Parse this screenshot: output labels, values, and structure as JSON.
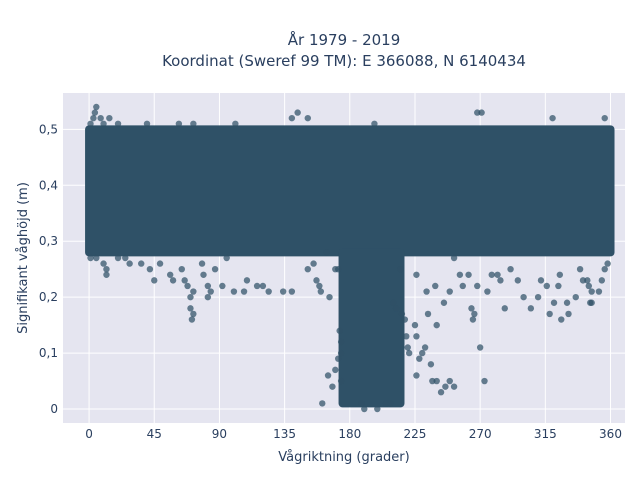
{
  "chart_data": {
    "type": "scatter",
    "title_line1": "År 1979 - 2019",
    "title_line2": "Koordinat (Sweref 99 TM): E 366088, N 6140434",
    "xlabel": "Vågriktning (grader)",
    "ylabel": "Signifikant våghöjd (m)",
    "xlim": [
      -18,
      370
    ],
    "ylim": [
      -0.025,
      0.565
    ],
    "xticks": [
      0,
      45,
      90,
      135,
      180,
      225,
      270,
      315,
      360
    ],
    "xtick_labels": [
      "0",
      "45",
      "90",
      "135",
      "180",
      "225",
      "270",
      "315",
      "360"
    ],
    "yticks": [
      0,
      0.1,
      0.2,
      0.3,
      0.4,
      0.5
    ],
    "ytick_labels": [
      "0",
      "0,1",
      "0,2",
      "0,3",
      "0,4",
      "0,5"
    ],
    "grid": true,
    "legend": "none",
    "colors": {
      "marker": "#2f5167",
      "plot_bg": "#e5e5f0",
      "grid": "#ffffff"
    },
    "dense_regions": [
      {
        "x": [
          0,
          360
        ],
        "y": [
          0.28,
          0.5
        ]
      },
      {
        "x": [
          175,
          215
        ],
        "y": [
          0.01,
          0.28
        ]
      }
    ],
    "points": [
      [
        1,
        0.51
      ],
      [
        3,
        0.52
      ],
      [
        4,
        0.53
      ],
      [
        5,
        0.54
      ],
      [
        8,
        0.52
      ],
      [
        10,
        0.51
      ],
      [
        14,
        0.52
      ],
      [
        20,
        0.51
      ],
      [
        40,
        0.51
      ],
      [
        62,
        0.51
      ],
      [
        72,
        0.51
      ],
      [
        101,
        0.51
      ],
      [
        140,
        0.52
      ],
      [
        144,
        0.53
      ],
      [
        151,
        0.52
      ],
      [
        197,
        0.51
      ],
      [
        268,
        0.53
      ],
      [
        271,
        0.53
      ],
      [
        320,
        0.52
      ],
      [
        356,
        0.52
      ],
      [
        1,
        0.27
      ],
      [
        5,
        0.27
      ],
      [
        10,
        0.26
      ],
      [
        12,
        0.25
      ],
      [
        12,
        0.24
      ],
      [
        20,
        0.27
      ],
      [
        25,
        0.27
      ],
      [
        28,
        0.26
      ],
      [
        36,
        0.26
      ],
      [
        42,
        0.25
      ],
      [
        45,
        0.23
      ],
      [
        49,
        0.26
      ],
      [
        56,
        0.24
      ],
      [
        58,
        0.23
      ],
      [
        64,
        0.25
      ],
      [
        66,
        0.23
      ],
      [
        68,
        0.22
      ],
      [
        70,
        0.2
      ],
      [
        72,
        0.21
      ],
      [
        70,
        0.18
      ],
      [
        71,
        0.16
      ],
      [
        72,
        0.17
      ],
      [
        78,
        0.26
      ],
      [
        79,
        0.24
      ],
      [
        82,
        0.22
      ],
      [
        82,
        0.2
      ],
      [
        84,
        0.21
      ],
      [
        87,
        0.25
      ],
      [
        92,
        0.22
      ],
      [
        95,
        0.27
      ],
      [
        100,
        0.21
      ],
      [
        107,
        0.21
      ],
      [
        109,
        0.23
      ],
      [
        116,
        0.22
      ],
      [
        120,
        0.22
      ],
      [
        124,
        0.21
      ],
      [
        134,
        0.21
      ],
      [
        140,
        0.21
      ],
      [
        151,
        0.25
      ],
      [
        155,
        0.26
      ],
      [
        157,
        0.23
      ],
      [
        159,
        0.22
      ],
      [
        160,
        0.21
      ],
      [
        164,
        0.28
      ],
      [
        166,
        0.2
      ],
      [
        170,
        0.25
      ],
      [
        172,
        0.25
      ],
      [
        161,
        0.01
      ],
      [
        165,
        0.06
      ],
      [
        168,
        0.04
      ],
      [
        170,
        0.07
      ],
      [
        172,
        0.09
      ],
      [
        173,
        0.14
      ],
      [
        174,
        0.1
      ],
      [
        174,
        0.12
      ],
      [
        174,
        0.05
      ],
      [
        210,
        0.19
      ],
      [
        212,
        0.18
      ],
      [
        216,
        0.17
      ],
      [
        218,
        0.16
      ],
      [
        219,
        0.13
      ],
      [
        220,
        0.11
      ],
      [
        221,
        0.1
      ],
      [
        225,
        0.15
      ],
      [
        226,
        0.13
      ],
      [
        226,
        0.06
      ],
      [
        228,
        0.09
      ],
      [
        230,
        0.1
      ],
      [
        232,
        0.11
      ],
      [
        234,
        0.17
      ],
      [
        236,
        0.08
      ],
      [
        237,
        0.05
      ],
      [
        240,
        0.15
      ],
      [
        240,
        0.05
      ],
      [
        243,
        0.03
      ],
      [
        246,
        0.04
      ],
      [
        249,
        0.05
      ],
      [
        252,
        0.04
      ],
      [
        233,
        0.21
      ],
      [
        239,
        0.22
      ],
      [
        245,
        0.19
      ],
      [
        249,
        0.21
      ],
      [
        256,
        0.24
      ],
      [
        258,
        0.22
      ],
      [
        262,
        0.24
      ],
      [
        264,
        0.18
      ],
      [
        265,
        0.16
      ],
      [
        266,
        0.17
      ],
      [
        268,
        0.22
      ],
      [
        270,
        0.11
      ],
      [
        273,
        0.05
      ],
      [
        275,
        0.21
      ],
      [
        282,
        0.24
      ],
      [
        284,
        0.23
      ],
      [
        287,
        0.18
      ],
      [
        291,
        0.25
      ],
      [
        300,
        0.2
      ],
      [
        305,
        0.18
      ],
      [
        310,
        0.2
      ],
      [
        316,
        0.22
      ],
      [
        318,
        0.17
      ],
      [
        321,
        0.19
      ],
      [
        324,
        0.22
      ],
      [
        326,
        0.16
      ],
      [
        330,
        0.19
      ],
      [
        331,
        0.17
      ],
      [
        336,
        0.2
      ],
      [
        339,
        0.25
      ],
      [
        341,
        0.23
      ],
      [
        345,
        0.22
      ],
      [
        346,
        0.19
      ],
      [
        347,
        0.21
      ],
      [
        352,
        0.21
      ],
      [
        354,
        0.23
      ],
      [
        356,
        0.25
      ],
      [
        358,
        0.26
      ],
      [
        347,
        0.19
      ],
      [
        344,
        0.23
      ],
      [
        325,
        0.24
      ],
      [
        312,
        0.23
      ],
      [
        296,
        0.23
      ],
      [
        278,
        0.24
      ],
      [
        252,
        0.27
      ],
      [
        226,
        0.24
      ],
      [
        215,
        0.25
      ],
      [
        188,
        0.01
      ],
      [
        190,
        0.0
      ],
      [
        199,
        0.0
      ],
      [
        205,
        0.01
      ],
      [
        208,
        0.01
      ]
    ]
  }
}
